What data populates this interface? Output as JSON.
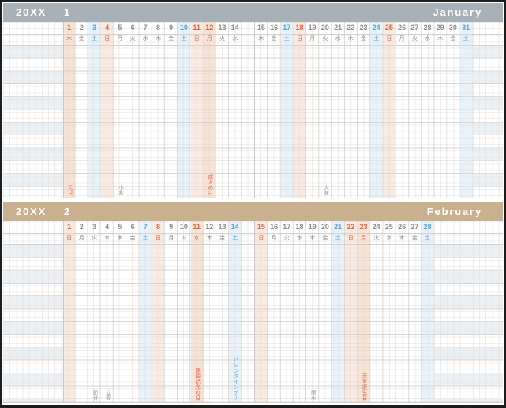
{
  "palette": {
    "header_january": "#a9b1b8",
    "header_february": "#c9b190",
    "holiday_red": "#e2653c",
    "saturday_blue": "#58a6d8",
    "weekday_gray": "#8d8d8d",
    "note_gray": "#9a9a9a",
    "sunday_tint": "#f2d3c2",
    "holiday_tint": "#eec4ab",
    "saturday_tint": "#cfe2f2"
  },
  "months": [
    {
      "year_label": "20XX",
      "month_number": "1",
      "month_name": "January",
      "days": [
        {
          "day": "1",
          "weekday": "木",
          "type": "holiday",
          "note": "元日",
          "note_color": "red"
        },
        {
          "day": "2",
          "weekday": "金",
          "type": "weekday"
        },
        {
          "day": "3",
          "weekday": "土",
          "type": "saturday"
        },
        {
          "day": "4",
          "weekday": "日",
          "type": "sunday"
        },
        {
          "day": "5",
          "weekday": "月",
          "type": "weekday",
          "note": "小寒",
          "note_color": "gray"
        },
        {
          "day": "6",
          "weekday": "火",
          "type": "weekday"
        },
        {
          "day": "7",
          "weekday": "水",
          "type": "weekday"
        },
        {
          "day": "8",
          "weekday": "木",
          "type": "weekday"
        },
        {
          "day": "9",
          "weekday": "金",
          "type": "weekday"
        },
        {
          "day": "10",
          "weekday": "土",
          "type": "saturday"
        },
        {
          "day": "11",
          "weekday": "日",
          "type": "sunday"
        },
        {
          "day": "12",
          "weekday": "月",
          "type": "holiday",
          "note": "成人の日",
          "note_color": "red"
        },
        {
          "day": "13",
          "weekday": "火",
          "type": "weekday"
        },
        {
          "day": "14",
          "weekday": "水",
          "type": "weekday"
        },
        {
          "day": "15",
          "weekday": "木",
          "type": "weekday"
        },
        {
          "day": "16",
          "weekday": "金",
          "type": "weekday"
        },
        {
          "day": "17",
          "weekday": "土",
          "type": "saturday"
        },
        {
          "day": "18",
          "weekday": "日",
          "type": "sunday"
        },
        {
          "day": "19",
          "weekday": "月",
          "type": "weekday"
        },
        {
          "day": "20",
          "weekday": "火",
          "type": "weekday",
          "note": "大寒",
          "note_color": "gray"
        },
        {
          "day": "21",
          "weekday": "水",
          "type": "weekday"
        },
        {
          "day": "22",
          "weekday": "木",
          "type": "weekday"
        },
        {
          "day": "23",
          "weekday": "金",
          "type": "weekday"
        },
        {
          "day": "24",
          "weekday": "土",
          "type": "saturday"
        },
        {
          "day": "25",
          "weekday": "日",
          "type": "sunday"
        },
        {
          "day": "26",
          "weekday": "月",
          "type": "weekday"
        },
        {
          "day": "27",
          "weekday": "火",
          "type": "weekday"
        },
        {
          "day": "28",
          "weekday": "水",
          "type": "weekday"
        },
        {
          "day": "29",
          "weekday": "木",
          "type": "weekday"
        },
        {
          "day": "30",
          "weekday": "金",
          "type": "weekday"
        },
        {
          "day": "31",
          "weekday": "土",
          "type": "saturday"
        }
      ]
    },
    {
      "year_label": "20XX",
      "month_number": "2",
      "month_name": "February",
      "days": [
        {
          "day": "1",
          "weekday": "日",
          "type": "sunday"
        },
        {
          "day": "2",
          "weekday": "月",
          "type": "weekday"
        },
        {
          "day": "3",
          "weekday": "火",
          "type": "weekday",
          "note": "節分",
          "note_color": "gray"
        },
        {
          "day": "4",
          "weekday": "水",
          "type": "weekday",
          "note": "立春",
          "note_color": "gray"
        },
        {
          "day": "5",
          "weekday": "木",
          "type": "weekday"
        },
        {
          "day": "6",
          "weekday": "金",
          "type": "weekday"
        },
        {
          "day": "7",
          "weekday": "土",
          "type": "saturday"
        },
        {
          "day": "8",
          "weekday": "日",
          "type": "sunday"
        },
        {
          "day": "9",
          "weekday": "月",
          "type": "weekday"
        },
        {
          "day": "10",
          "weekday": "火",
          "type": "weekday"
        },
        {
          "day": "11",
          "weekday": "水",
          "type": "holiday",
          "note": "建国記念の日",
          "note_color": "red"
        },
        {
          "day": "12",
          "weekday": "木",
          "type": "weekday"
        },
        {
          "day": "13",
          "weekday": "金",
          "type": "weekday"
        },
        {
          "day": "14",
          "weekday": "土",
          "type": "saturday",
          "note": "バレンタインデー",
          "note_color": "blue"
        },
        {
          "day": "15",
          "weekday": "日",
          "type": "sunday"
        },
        {
          "day": "16",
          "weekday": "月",
          "type": "weekday"
        },
        {
          "day": "17",
          "weekday": "火",
          "type": "weekday"
        },
        {
          "day": "18",
          "weekday": "水",
          "type": "weekday"
        },
        {
          "day": "19",
          "weekday": "木",
          "type": "weekday",
          "note": "雨水",
          "note_color": "gray"
        },
        {
          "day": "20",
          "weekday": "金",
          "type": "weekday"
        },
        {
          "day": "21",
          "weekday": "土",
          "type": "saturday"
        },
        {
          "day": "22",
          "weekday": "日",
          "type": "sunday"
        },
        {
          "day": "23",
          "weekday": "月",
          "type": "holiday",
          "note": "天皇誕生日",
          "note_color": "red"
        },
        {
          "day": "24",
          "weekday": "火",
          "type": "weekday"
        },
        {
          "day": "25",
          "weekday": "水",
          "type": "weekday"
        },
        {
          "day": "26",
          "weekday": "木",
          "type": "weekday"
        },
        {
          "day": "27",
          "weekday": "金",
          "type": "weekday"
        },
        {
          "day": "28",
          "weekday": "土",
          "type": "saturday"
        }
      ]
    }
  ]
}
